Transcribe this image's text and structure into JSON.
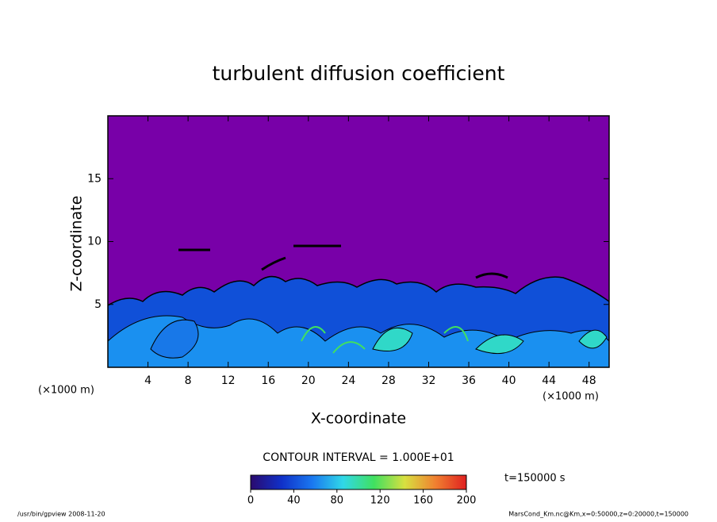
{
  "chart_data": {
    "type": "contour",
    "title": "turbulent diffusion coefficient",
    "xlabel": "X-coordinate",
    "ylabel": "Z-coordinate",
    "xunit": "(×1000 m)",
    "yunit": "(×1000 m)",
    "xlim": [
      0,
      50
    ],
    "xticks": [
      4,
      8,
      12,
      16,
      20,
      24,
      28,
      32,
      36,
      40,
      44,
      48
    ],
    "ylim": [
      0,
      20
    ],
    "yticks": [
      5,
      10,
      15
    ],
    "contour_interval": "CONTOUR INTERVAL = 1.000E+01",
    "time_label": "t=150000 s",
    "colorbar": {
      "lim": [
        0,
        200
      ],
      "ticks": [
        0,
        40,
        80,
        120,
        160,
        200
      ],
      "colors": [
        "#2a0a6e",
        "#1030c8",
        "#1a78f0",
        "#30d8e8",
        "#40e060",
        "#d8e040",
        "#f08030",
        "#e02020"
      ]
    },
    "footer_left": "/usr/bin/gpview  2008-11-20",
    "footer_right": "MarsCond_Km.nc@Km,x=0:50000,z=0:20000,t=150000"
  }
}
